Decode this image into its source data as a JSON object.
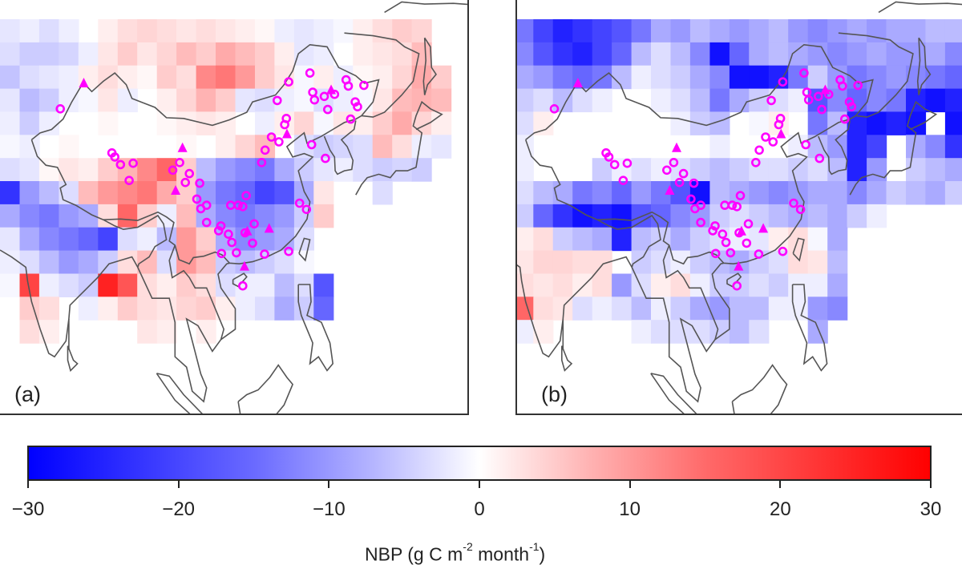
{
  "chart_data": {
    "type": "heatmap",
    "title": "",
    "colorbar": {
      "label_prefix": "NBP (g C m",
      "label_exp1": "-2",
      "label_mid": " month",
      "label_exp2": "-1",
      "label_suffix": ")",
      "range": [
        -30,
        30
      ],
      "ticks": [
        "−30",
        "−20",
        "−10",
        "0",
        "10",
        "20",
        "30"
      ],
      "tick_values": [
        -30,
        -20,
        -10,
        0,
        10,
        20,
        30
      ],
      "colors": {
        "low": "#0000ff",
        "mid": "#ffffff",
        "high": "#ff0000"
      }
    },
    "grid_extent_lon": [
      68,
      150
    ],
    "grid_extent_lat": [
      10,
      57
    ],
    "grid_cols": 24,
    "grid_rows": 14,
    "marker_color": "#ff00ff",
    "panels": [
      {
        "label": "(a)",
        "values": [
          [
            -3,
            -2,
            -4,
            -2,
            0,
            2,
            4,
            5,
            4,
            3,
            4,
            3,
            2,
            1,
            -2,
            -3,
            -2,
            -1,
            2,
            4,
            6,
            5,
            0,
            0
          ],
          [
            -4,
            -6,
            -6,
            -5,
            -2,
            3,
            6,
            3,
            5,
            8,
            6,
            10,
            8,
            6,
            2,
            -3,
            -2,
            0,
            2,
            3,
            4,
            8,
            0,
            0
          ],
          [
            -7,
            -4,
            -3,
            -2,
            2,
            4,
            2,
            1,
            6,
            4,
            14,
            16,
            12,
            6,
            3,
            -1,
            2,
            -2,
            1,
            2,
            5,
            10,
            6,
            0
          ],
          [
            -3,
            -8,
            -6,
            -2,
            -1,
            3,
            -2,
            0,
            2,
            5,
            9,
            6,
            -3,
            -4,
            -2,
            -1,
            -4,
            -2,
            -1,
            3,
            8,
            9,
            8,
            0
          ],
          [
            -2,
            -6,
            -2,
            0,
            0,
            1,
            0,
            0,
            1,
            2,
            3,
            2,
            0,
            -2,
            2,
            5,
            -1,
            3,
            2,
            6,
            10,
            5,
            2,
            0
          ],
          [
            -1,
            -2,
            0,
            1,
            0,
            0,
            0,
            0,
            0,
            1,
            0,
            2,
            5,
            8,
            0,
            -4,
            -6,
            -5,
            -4,
            8,
            4,
            -2,
            -3,
            0
          ],
          [
            -4,
            -3,
            1,
            3,
            2,
            6,
            9,
            14,
            18,
            6,
            -8,
            -12,
            -14,
            -16,
            -10,
            -6,
            -3,
            -2,
            -4,
            -6,
            -5,
            -6,
            0,
            0
          ],
          [
            -24,
            -12,
            -8,
            -4,
            8,
            12,
            14,
            16,
            10,
            6,
            -12,
            -16,
            -18,
            -22,
            -20,
            -10,
            3,
            0,
            0,
            -4,
            0,
            0,
            0,
            0
          ],
          [
            -10,
            -14,
            -16,
            -12,
            -10,
            4,
            18,
            6,
            -2,
            8,
            -10,
            -14,
            -16,
            -14,
            -12,
            -6,
            6,
            0,
            0,
            0,
            0,
            0,
            0,
            0
          ],
          [
            -3,
            -10,
            -14,
            -16,
            -18,
            -22,
            -4,
            -2,
            -8,
            12,
            6,
            -10,
            -14,
            -12,
            -10,
            -4,
            0,
            0,
            0,
            0,
            0,
            0,
            0,
            0
          ],
          [
            -2,
            -4,
            -8,
            -12,
            -10,
            -6,
            4,
            8,
            -4,
            12,
            8,
            -6,
            -8,
            -6,
            -4,
            -1,
            0,
            0,
            0,
            0,
            0,
            0,
            0,
            0
          ],
          [
            -1,
            22,
            -2,
            -4,
            -6,
            26,
            20,
            4,
            2,
            6,
            4,
            -4,
            -2,
            -2,
            -8,
            -4,
            -20,
            0,
            0,
            0,
            0,
            0,
            0,
            0
          ],
          [
            0,
            6,
            4,
            0,
            -2,
            2,
            6,
            4,
            3,
            5,
            6,
            2,
            -2,
            -4,
            -10,
            -6,
            -18,
            0,
            0,
            0,
            0,
            0,
            0,
            0
          ],
          [
            0,
            4,
            2,
            0,
            0,
            0,
            0,
            3,
            2,
            0,
            2,
            0,
            0,
            0,
            0,
            0,
            0,
            0,
            0,
            0,
            0,
            0,
            0,
            0
          ]
        ]
      },
      {
        "label": "(b)",
        "values": [
          [
            -28,
            -16,
            -22,
            -26,
            -24,
            -22,
            -20,
            -16,
            -10,
            -12,
            -8,
            -10,
            -12,
            -10,
            -8,
            -12,
            -14,
            -12,
            -10,
            -12,
            -10,
            -10,
            -8,
            -8
          ],
          [
            -18,
            -14,
            -20,
            -24,
            -26,
            -22,
            -18,
            -8,
            -4,
            -8,
            -14,
            -28,
            -18,
            -10,
            -8,
            -10,
            -12,
            -14,
            -12,
            -10,
            -12,
            -12,
            -10,
            -14
          ],
          [
            -8,
            -10,
            -12,
            -16,
            -18,
            -16,
            -8,
            -2,
            -4,
            -6,
            -10,
            -14,
            -28,
            -28,
            -26,
            -16,
            -6,
            -12,
            -16,
            -14,
            -12,
            -14,
            -16,
            -18
          ],
          [
            -2,
            -6,
            -4,
            -8,
            -4,
            -2,
            0,
            0,
            -2,
            -4,
            -8,
            -16,
            -10,
            -6,
            -4,
            -2,
            -20,
            -14,
            -18,
            -14,
            -16,
            -26,
            -28,
            -26
          ],
          [
            2,
            -4,
            2,
            0,
            0,
            0,
            0,
            0,
            0,
            -2,
            -6,
            -8,
            0,
            -1,
            2,
            0,
            -16,
            -8,
            -26,
            -28,
            -26,
            -28,
            0,
            -28
          ],
          [
            3,
            -2,
            0,
            0,
            0,
            0,
            0,
            0,
            0,
            0,
            0,
            -2,
            0,
            0,
            0,
            -2,
            -8,
            -12,
            -26,
            -22,
            0,
            -10,
            -14,
            -24
          ],
          [
            0,
            -2,
            0,
            0,
            0,
            -6,
            -2,
            -4,
            -2,
            -4,
            -6,
            -8,
            -6,
            -4,
            -4,
            -6,
            -4,
            -8,
            -26,
            -12,
            0,
            -6,
            -8,
            -10
          ],
          [
            -12,
            -4,
            -8,
            -10,
            -16,
            -14,
            -18,
            -12,
            -16,
            -20,
            -28,
            -8,
            -10,
            -12,
            -14,
            -12,
            -10,
            -10,
            -14,
            -10,
            -6,
            -8,
            -10,
            -6
          ],
          [
            4,
            -6,
            -18,
            -24,
            -28,
            -26,
            -28,
            -20,
            -18,
            -14,
            -12,
            -6,
            -4,
            -6,
            -8,
            -10,
            -8,
            -10,
            -6,
            -2,
            0,
            0,
            0,
            0
          ],
          [
            6,
            2,
            4,
            -6,
            -8,
            -10,
            -26,
            -8,
            -6,
            -10,
            -6,
            -4,
            -2,
            -3,
            2,
            4,
            -1,
            -10,
            0,
            0,
            0,
            0,
            0,
            0
          ],
          [
            0,
            3,
            5,
            5,
            4,
            4,
            0,
            -6,
            -4,
            -2,
            -6,
            -8,
            -10,
            -6,
            -4,
            4,
            3,
            -8,
            0,
            0,
            0,
            0,
            0,
            0
          ],
          [
            0,
            4,
            3,
            4,
            2,
            4,
            -12,
            -4,
            2,
            4,
            -2,
            -6,
            -6,
            -4,
            -6,
            -2,
            -2,
            -10,
            0,
            0,
            0,
            0,
            0,
            0
          ],
          [
            0,
            18,
            4,
            3,
            -4,
            -2,
            -4,
            -8,
            -2,
            -6,
            -10,
            -12,
            -8,
            -8,
            -2,
            -2,
            -12,
            -14,
            0,
            0,
            0,
            0,
            0,
            0
          ],
          [
            0,
            -2,
            2,
            0,
            0,
            0,
            0,
            -2,
            -4,
            -4,
            -4,
            -6,
            -8,
            -4,
            0,
            0,
            -10,
            0,
            0,
            0,
            0,
            0,
            0,
            0
          ]
        ]
      }
    ],
    "sites": {
      "circles": [
        [
          78.5,
          44.0
        ],
        [
          87.5,
          37.6
        ],
        [
          88.0,
          37.0
        ],
        [
          89.0,
          35.9
        ],
        [
          91.2,
          36.1
        ],
        [
          90.5,
          33.6
        ],
        [
          98.1,
          35.1
        ],
        [
          99.3,
          36.2
        ],
        [
          100.3,
          33.3
        ],
        [
          101.0,
          34.6
        ],
        [
          102.8,
          33.2
        ],
        [
          102.3,
          30.9
        ],
        [
          104.0,
          30.0
        ],
        [
          103.0,
          29.5
        ],
        [
          104.0,
          27.5
        ],
        [
          106.5,
          27.0
        ],
        [
          106.1,
          26.3
        ],
        [
          107.8,
          25.8
        ],
        [
          108.4,
          24.6
        ],
        [
          106.6,
          23.0
        ],
        [
          109.2,
          23.1
        ],
        [
          110.7,
          26.0
        ],
        [
          112.0,
          24.5
        ],
        [
          112.3,
          27.3
        ],
        [
          109.5,
          30.0
        ],
        [
          108.2,
          30.0
        ],
        [
          110.3,
          29.8
        ],
        [
          110.9,
          31.4
        ],
        [
          113.6,
          36.2
        ],
        [
          114.2,
          38.0
        ],
        [
          115.3,
          39.9
        ],
        [
          116.6,
          39.2
        ],
        [
          117.6,
          41.7
        ],
        [
          117.9,
          42.6
        ],
        [
          116.3,
          45.2
        ],
        [
          118.3,
          47.9
        ],
        [
          122.0,
          49.2
        ],
        [
          122.5,
          46.4
        ],
        [
          122.8,
          45.3
        ],
        [
          124.5,
          45.8
        ],
        [
          125.1,
          43.9
        ],
        [
          126.3,
          46.1
        ],
        [
          128.3,
          48.2
        ],
        [
          128.7,
          47.3
        ],
        [
          129.9,
          45.0
        ],
        [
          130.3,
          44.3
        ],
        [
          131.4,
          47.4
        ],
        [
          129.1,
          42.5
        ],
        [
          122.3,
          38.8
        ],
        [
          124.7,
          36.8
        ],
        [
          120.2,
          30.3
        ],
        [
          121.4,
          29.4
        ],
        [
          118.3,
          23.3
        ],
        [
          114.1,
          22.9
        ],
        [
          110.3,
          18.3
        ]
      ],
      "triangles": [
        [
          82.6,
          47.7
        ],
        [
          99.8,
          38.3
        ],
        [
          98.6,
          32.1
        ],
        [
          111.1,
          26.2
        ],
        [
          114.9,
          26.6
        ],
        [
          118.0,
          40.3
        ],
        [
          125.7,
          46.7
        ],
        [
          110.6,
          21.1
        ]
      ]
    }
  }
}
